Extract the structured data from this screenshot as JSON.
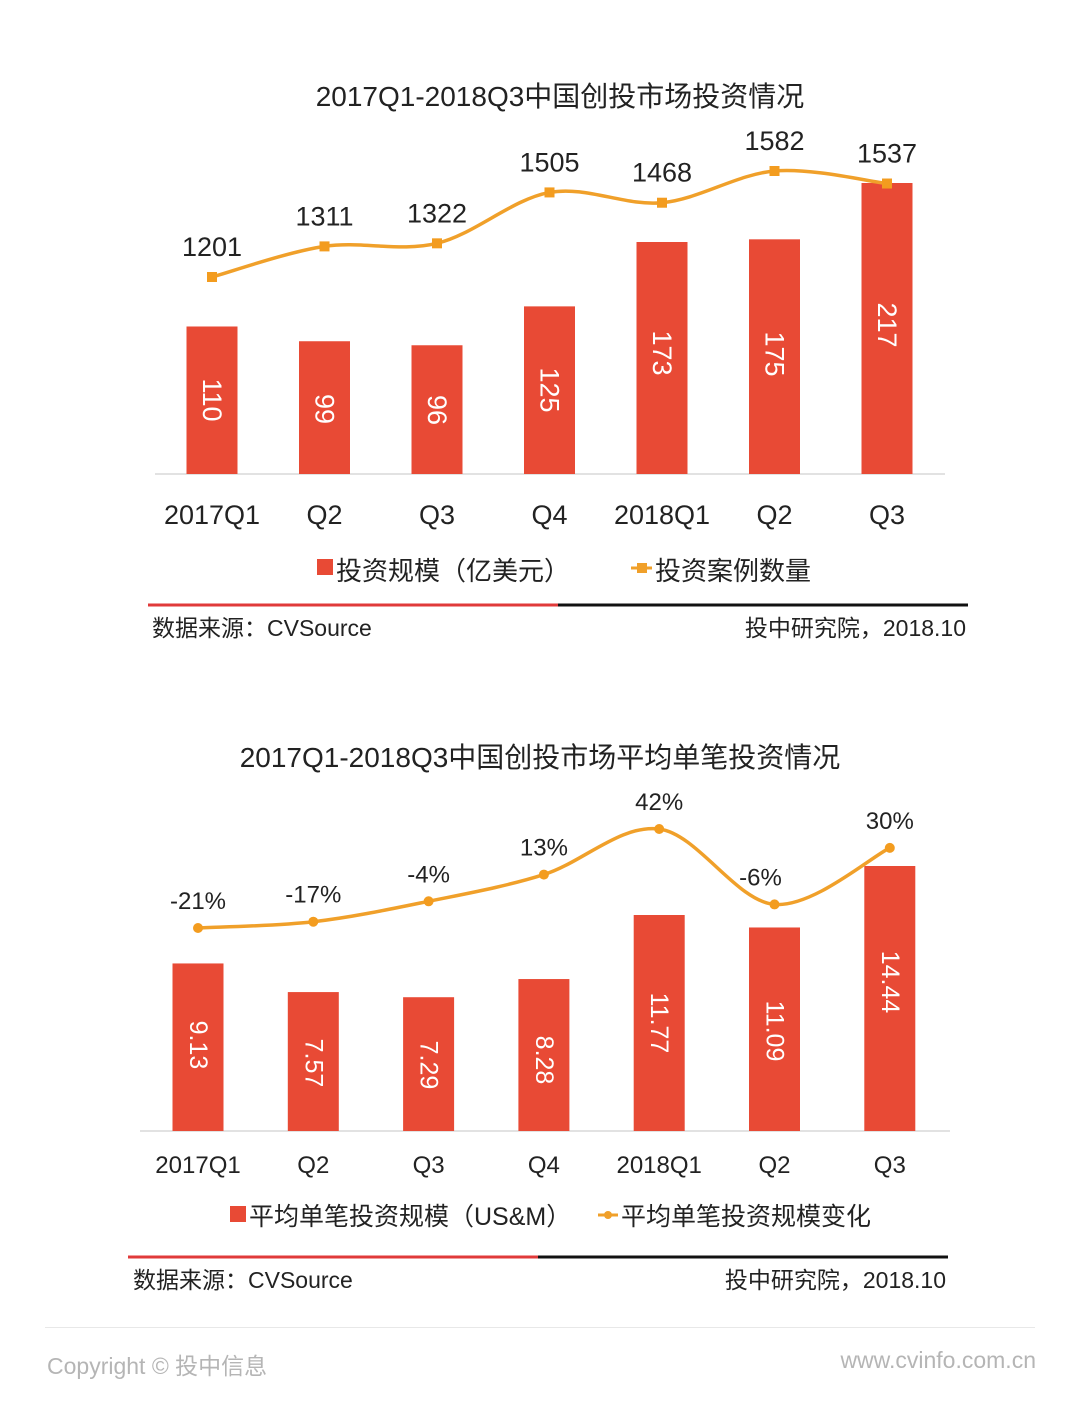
{
  "chart_data": [
    {
      "type": "bar",
      "title": "2017Q1-2018Q3中国创投市场投资情况",
      "categories": [
        "2017Q1",
        "Q2",
        "Q3",
        "Q4",
        "2018Q1",
        "Q2",
        "Q3"
      ],
      "series": [
        {
          "name": "投资规模（亿美元）",
          "type": "bar",
          "values": [
            110,
            99,
            96,
            125,
            173,
            175,
            217
          ],
          "color": "#E84A35"
        },
        {
          "name": "投资案例数量",
          "type": "line",
          "values": [
            1201,
            1311,
            1322,
            1505,
            1468,
            1582,
            1537
          ],
          "color": "#F0A02A",
          "marker": "square"
        }
      ],
      "xlabel": "",
      "ylabel": "",
      "grid": false,
      "legend": "bottom",
      "source": "数据来源：CVSource",
      "credit": "投中研究院，2018.10"
    },
    {
      "type": "bar",
      "title": "2017Q1-2018Q3中国创投市场平均单笔投资情况",
      "categories": [
        "2017Q1",
        "Q2",
        "Q3",
        "Q4",
        "2018Q1",
        "Q2",
        "Q3"
      ],
      "series": [
        {
          "name": "平均单笔投资规模（US&M）",
          "type": "bar",
          "values": [
            9.13,
            7.57,
            7.29,
            8.28,
            11.77,
            11.09,
            14.44
          ],
          "labels": [
            "9.13",
            "7.57",
            "7.29",
            "8.28",
            "11.77",
            "11.09",
            "14.44"
          ],
          "color": "#E84A35"
        },
        {
          "name": "平均单笔投资规模变化",
          "type": "line",
          "values": [
            -21,
            -17,
            -4,
            13,
            42,
            -6,
            30
          ],
          "labels": [
            "-21%",
            "-17%",
            "-4%",
            "13%",
            "42%",
            "-6%",
            "30%"
          ],
          "color": "#F0A02A",
          "marker": "circle"
        }
      ],
      "xlabel": "",
      "ylabel": "",
      "grid": false,
      "legend": "bottom",
      "source": "数据来源：CVSource",
      "credit": "投中研究院，2018.10"
    }
  ],
  "footer": {
    "copyright": "Copyright © 投中信息",
    "website": "www.cvinfo.com.cn"
  }
}
